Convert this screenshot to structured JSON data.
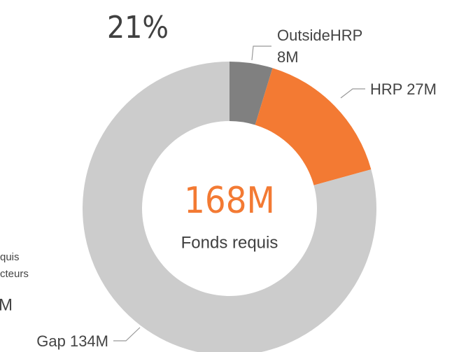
{
  "chart_data": {
    "type": "donut",
    "title": "21%",
    "categories": [
      "OutsideHRP",
      "HRP",
      "Gap"
    ],
    "values": [
      8,
      27,
      134
    ],
    "value_labels": [
      "8M",
      "27M",
      "134M"
    ],
    "colors": [
      "#808080",
      "#f37a33",
      "#cccccc"
    ],
    "center_value": "168M",
    "center_label": "Fonds requis",
    "side_fragments": [
      "quis",
      "cteurs",
      "M"
    ]
  }
}
